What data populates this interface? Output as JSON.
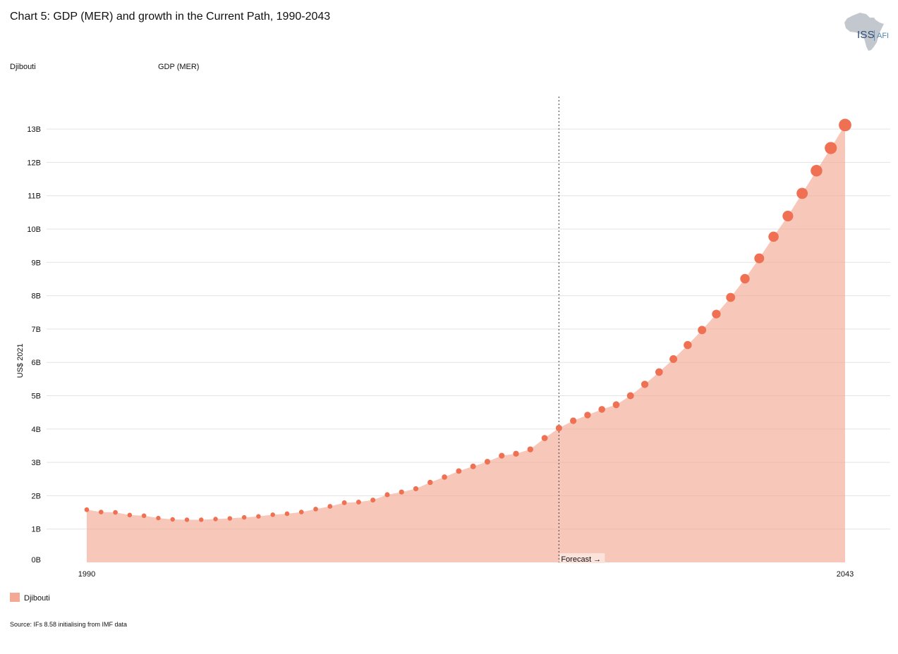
{
  "header": {
    "title": "Chart 5: GDP (MER) and growth in the Current Path, 1990-2043",
    "country_label": "Djibouti",
    "series_label": "GDP (MER)"
  },
  "logo": {
    "text_main": "ISS",
    "text_sub": "AFI",
    "icon": "africa-map-icon"
  },
  "legend": {
    "label": "Djibouti",
    "color": "#f3a994"
  },
  "source": "Source: IFs 8.58 initialising from IMF data",
  "chart_data": {
    "type": "area",
    "title": "Chart 5: GDP (MER) and growth in the Current Path, 1990-2043",
    "xlabel": "",
    "ylabel": "US$ 2021",
    "x_tick_labels": [
      "1990",
      "2043"
    ],
    "y_tick_labels": [
      "0B",
      "1B",
      "2B",
      "3B",
      "4B",
      "5B",
      "6B",
      "7B",
      "8B",
      "9B",
      "10B",
      "11B",
      "12B",
      "13B"
    ],
    "ylim": [
      0,
      14
    ],
    "y_unit": "B",
    "grid": true,
    "legend_position": "bottom-left",
    "forecast_start_year": 2023,
    "forecast_label": "Forecast →",
    "area_color": "#f3a994",
    "point_color": "#ef7052",
    "x": [
      1990,
      1991,
      1992,
      1993,
      1994,
      1995,
      1996,
      1997,
      1998,
      1999,
      2000,
      2001,
      2002,
      2003,
      2004,
      2005,
      2006,
      2007,
      2008,
      2009,
      2010,
      2011,
      2012,
      2013,
      2014,
      2015,
      2016,
      2017,
      2018,
      2019,
      2020,
      2021,
      2022,
      2023,
      2024,
      2025,
      2026,
      2027,
      2028,
      2029,
      2030,
      2031,
      2032,
      2033,
      2034,
      2035,
      2036,
      2037,
      2038,
      2039,
      2040,
      2041,
      2042,
      2043
    ],
    "series": [
      {
        "name": "Djibouti",
        "values": [
          1.58,
          1.51,
          1.5,
          1.42,
          1.4,
          1.33,
          1.29,
          1.28,
          1.28,
          1.3,
          1.32,
          1.35,
          1.38,
          1.43,
          1.46,
          1.51,
          1.6,
          1.68,
          1.79,
          1.81,
          1.87,
          2.03,
          2.11,
          2.21,
          2.4,
          2.56,
          2.74,
          2.88,
          3.02,
          3.2,
          3.26,
          3.39,
          3.73,
          4.03,
          4.25,
          4.42,
          4.59,
          4.73,
          5.0,
          5.34,
          5.71,
          6.1,
          6.52,
          6.97,
          7.45,
          7.95,
          8.51,
          9.12,
          9.77,
          10.39,
          11.07,
          11.75,
          12.43,
          13.12
        ]
      }
    ]
  }
}
